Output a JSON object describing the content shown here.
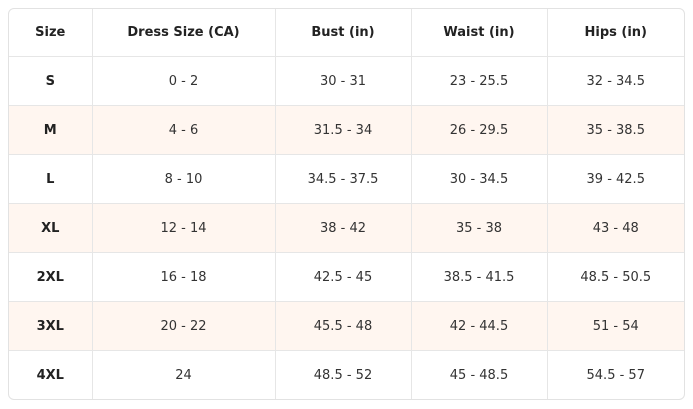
{
  "table": {
    "headers": [
      "Size",
      "Dress Size (CA)",
      "Bust (in)",
      "Waist (in)",
      "Hips (in)"
    ],
    "rows": [
      [
        "S",
        "0 - 2",
        "30 - 31",
        "23 - 25.5",
        "32 - 34.5"
      ],
      [
        "M",
        "4 - 6",
        "31.5 - 34",
        "26 - 29.5",
        "35 - 38.5"
      ],
      [
        "L",
        "8 - 10",
        "34.5 - 37.5",
        "30 - 34.5",
        "39 - 42.5"
      ],
      [
        "XL",
        "12 - 14",
        "38 - 42",
        "35 - 38",
        "43 - 48"
      ],
      [
        "2XL",
        "16 - 18",
        "42.5 - 45",
        "38.5 - 41.5",
        "48.5 - 50.5"
      ],
      [
        "3XL",
        "20 - 22",
        "45.5 - 48",
        "42 - 44.5",
        "51 - 54"
      ],
      [
        "4XL",
        "24",
        "48.5 - 52",
        "45 - 48.5",
        "54.5 - 57"
      ]
    ]
  }
}
